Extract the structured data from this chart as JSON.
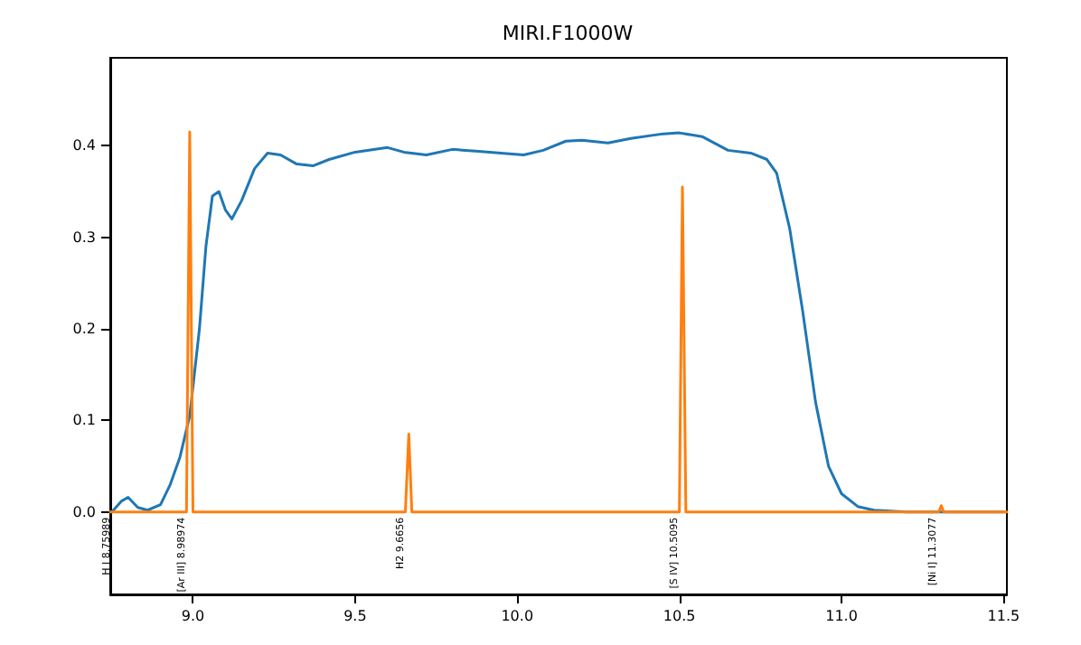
{
  "chart_data": {
    "type": "line",
    "title": "MIRI.F1000W",
    "series": [
      {
        "color": "#1f77b4",
        "x": [
          8.75,
          8.78,
          8.8,
          8.83,
          8.86,
          8.9,
          8.93,
          8.96,
          8.99,
          9.02,
          9.04,
          9.06,
          9.08,
          9.1,
          9.12,
          9.15,
          9.19,
          9.23,
          9.27,
          9.32,
          9.37,
          9.42,
          9.5,
          9.6,
          9.65,
          9.72,
          9.8,
          9.88,
          9.95,
          10.02,
          10.08,
          10.15,
          10.2,
          10.28,
          10.35,
          10.45,
          10.5,
          10.57,
          10.65,
          10.72,
          10.77,
          10.8,
          10.84,
          10.88,
          10.92,
          10.96,
          11.0,
          11.05,
          11.1,
          11.2,
          11.5
        ],
        "values": [
          0.0,
          0.012,
          0.016,
          0.005,
          0.002,
          0.008,
          0.03,
          0.06,
          0.105,
          0.2,
          0.29,
          0.345,
          0.35,
          0.33,
          0.32,
          0.34,
          0.375,
          0.392,
          0.39,
          0.38,
          0.378,
          0.385,
          0.393,
          0.398,
          0.393,
          0.39,
          0.396,
          0.394,
          0.392,
          0.39,
          0.395,
          0.405,
          0.406,
          0.403,
          0.408,
          0.413,
          0.414,
          0.41,
          0.395,
          0.392,
          0.385,
          0.37,
          0.31,
          0.22,
          0.12,
          0.05,
          0.02,
          0.006,
          0.002,
          0.0,
          0.0
        ]
      },
      {
        "color": "#ff7f0e",
        "x": [
          8.745,
          8.98,
          8.99,
          9.0,
          9.655,
          9.6656,
          9.675,
          10.5,
          10.5095,
          10.52,
          11.3,
          11.3077,
          11.315,
          11.51
        ],
        "values": [
          0,
          0,
          0.415,
          0,
          0,
          0.085,
          0,
          0,
          0.355,
          0,
          0,
          0.007,
          0,
          0
        ]
      }
    ],
    "xlim": [
      8.745,
      11.51
    ],
    "ylim": [
      -0.09,
      0.496
    ],
    "xticks": [
      {
        "value": 9,
        "label": "9.0"
      },
      {
        "value": 9.5,
        "label": "9.5"
      },
      {
        "value": 10,
        "label": "10.0"
      },
      {
        "value": 10.5,
        "label": "10.5"
      },
      {
        "value": 11,
        "label": "11.0"
      },
      {
        "value": 11.5,
        "label": "11.5"
      }
    ],
    "yticks": [
      {
        "value": 0,
        "label": "0.0"
      },
      {
        "value": 0.1,
        "label": "0.1"
      },
      {
        "value": 0.2,
        "label": "0.2"
      },
      {
        "value": 0.3,
        "label": "0.3"
      },
      {
        "value": 0.4,
        "label": "0.4"
      }
    ],
    "annotations": [
      {
        "text": "H I 8.75989",
        "x": 8.75989,
        "y": 0
      },
      {
        "text": "[Ar III] 8.98974",
        "x": 8.98974,
        "y": 0
      },
      {
        "text": "H2 9.6656",
        "x": 9.6656,
        "y": 0
      },
      {
        "text": "[S IV] 10.5095",
        "x": 10.5095,
        "y": 0
      },
      {
        "text": "[Ni I] 11.3077",
        "x": 11.3077,
        "y": 0
      }
    ],
    "grid": false,
    "marker": "none",
    "line_style": "solid"
  }
}
